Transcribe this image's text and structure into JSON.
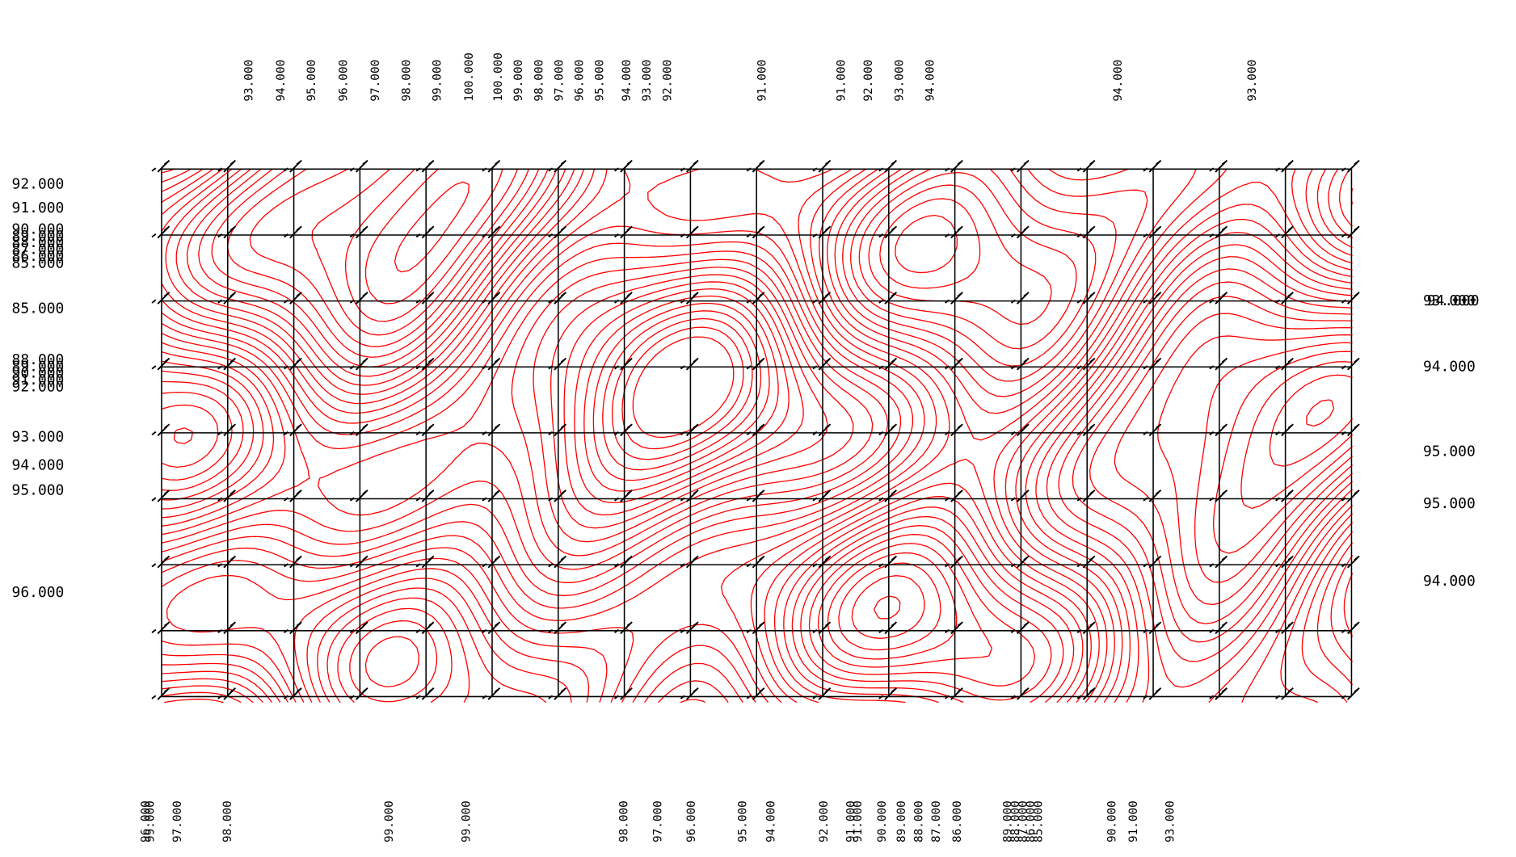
{
  "top_labels": [
    "93.000",
    "94.000",
    "95.000",
    "96.000",
    "97.000",
    "98.000",
    "99.000",
    "100.000",
    "100.000",
    "99.000",
    "98.000",
    "97.000",
    "96.000",
    "95.000",
    "94.000",
    "93.000",
    "92.000",
    "91.000",
    "91.000",
    "92.000",
    "93.000",
    "94.000",
    "94.000",
    "93.000"
  ],
  "left_labels": [
    "92.000",
    "91.000",
    "90.000",
    "89.000",
    "88.000",
    "87.000",
    "86.000",
    "85.000",
    "85.000",
    "88.000",
    "89.000",
    "90.000",
    "91.000",
    "92.000",
    "93.000",
    "94.000",
    "95.000",
    "96.000"
  ],
  "right_labels": [
    "93.000",
    "94.000",
    "94.000",
    "95.000",
    "95.000",
    "94.000"
  ],
  "bottom_labels": [
    "96.000",
    "99.000",
    "97.000",
    "98.000",
    "99.000",
    "99.000",
    "98.000",
    "97.000",
    "96.000",
    "95.000",
    "94.000",
    "92.000",
    "91.000",
    "91.000",
    "90.000",
    "89.000",
    "88.000",
    "87.000",
    "86.000",
    "89.000",
    "88.000",
    "87.000",
    "86.000",
    "85.000",
    "90.000",
    "91.000",
    "93.000"
  ]
}
